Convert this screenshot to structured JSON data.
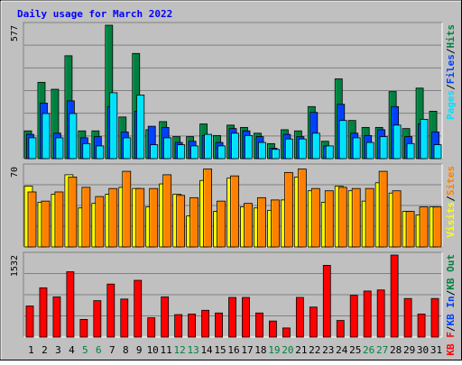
{
  "colors": {
    "background": "#c0c0c0",
    "title": "#0000ff",
    "hits": "#008040",
    "files": "#0040ff",
    "pages": "#00e0ff",
    "visits": "#ffff00",
    "sites": "#ff8000",
    "kbf": "#ff0000",
    "weekday_label": "#000000",
    "weekend_label": "#008040"
  },
  "chart_data": [
    {
      "type": "bar",
      "title": "Daily usage for March 2022",
      "ymax_label": "577",
      "legend": [
        {
          "text": "Pages",
          "series": "pages"
        },
        {
          "text": "Files",
          "series": "files"
        },
        {
          "text": "Hits",
          "series": "hits"
        }
      ],
      "legend_sep": "/",
      "categories": [
        "1",
        "2",
        "3",
        "4",
        "5",
        "6",
        "7",
        "8",
        "9",
        "10",
        "11",
        "12",
        "13",
        "14",
        "15",
        "16",
        "17",
        "18",
        "19",
        "20",
        "21",
        "22",
        "23",
        "24",
        "25",
        "26",
        "27",
        "28",
        "29",
        "30",
        "31"
      ],
      "weekend": [
        5,
        6,
        12,
        13,
        19,
        20,
        26,
        27
      ],
      "ylim": [
        0,
        577
      ],
      "series": [
        {
          "name": "Hits",
          "key": "hits",
          "values": [
            120,
            330,
            300,
            445,
            120,
            120,
            577,
            180,
            455,
            125,
            160,
            95,
            95,
            150,
            100,
            145,
            135,
            110,
            65,
            125,
            120,
            225,
            75,
            345,
            165,
            135,
            135,
            290,
            130,
            305,
            205
          ]
        },
        {
          "name": "Files",
          "key": "files",
          "values": [
            105,
            240,
            110,
            250,
            90,
            95,
            225,
            115,
            205,
            140,
            135,
            70,
            75,
            100,
            70,
            130,
            120,
            95,
            45,
            105,
            95,
            200,
            55,
            235,
            110,
            100,
            125,
            225,
            95,
            150,
            115
          ]
        },
        {
          "name": "Pages",
          "key": "pages",
          "values": [
            90,
            195,
            90,
            195,
            65,
            55,
            285,
            90,
            275,
            60,
            90,
            60,
            55,
            105,
            55,
            110,
            100,
            70,
            40,
            85,
            85,
            110,
            55,
            165,
            90,
            70,
            95,
            145,
            65,
            170,
            60
          ]
        }
      ]
    },
    {
      "type": "bar",
      "ymax_label": "70",
      "legend": [
        {
          "text": "Visits",
          "series": "visits"
        },
        {
          "text": "Sites",
          "series": "sites"
        }
      ],
      "legend_sep": "/",
      "categories": [
        "1",
        "2",
        "3",
        "4",
        "5",
        "6",
        "7",
        "8",
        "9",
        "10",
        "11",
        "12",
        "13",
        "14",
        "15",
        "16",
        "17",
        "18",
        "19",
        "20",
        "21",
        "22",
        "23",
        "24",
        "25",
        "26",
        "27",
        "28",
        "29",
        "30",
        "31"
      ],
      "ylim": [
        0,
        70
      ],
      "series": [
        {
          "name": "Visits",
          "key": "visits",
          "values": [
            53,
            39,
            46,
            63,
            34,
            38,
            46,
            52,
            51,
            35,
            55,
            46,
            27,
            58,
            31,
            60,
            35,
            34,
            32,
            41,
            61,
            49,
            39,
            53,
            49,
            40,
            56,
            47,
            31,
            28,
            35
          ]
        },
        {
          "name": "Sites",
          "key": "sites",
          "values": [
            48,
            40,
            48,
            61,
            52,
            44,
            51,
            66,
            51,
            51,
            63,
            45,
            43,
            68,
            40,
            62,
            38,
            43,
            41,
            65,
            68,
            51,
            49,
            52,
            51,
            51,
            66,
            49,
            31,
            35,
            35
          ]
        }
      ]
    },
    {
      "type": "bar",
      "ymax_label": "1532",
      "legend": [
        {
          "text": "KB F",
          "series": "kbf"
        },
        {
          "text": "KB In",
          "series": "kbin"
        },
        {
          "text": "KB Out",
          "series": "kbout"
        }
      ],
      "legend_sep": "/",
      "categories": [
        "1",
        "2",
        "3",
        "4",
        "5",
        "6",
        "7",
        "8",
        "9",
        "10",
        "11",
        "12",
        "13",
        "14",
        "15",
        "16",
        "17",
        "18",
        "19",
        "20",
        "21",
        "22",
        "23",
        "24",
        "25",
        "26",
        "27",
        "28",
        "29",
        "30",
        "31"
      ],
      "ylim": [
        0,
        1532
      ],
      "series": [
        {
          "name": "KB F",
          "key": "kbf",
          "values": [
            580,
            920,
            750,
            1220,
            330,
            680,
            990,
            710,
            1060,
            360,
            750,
            420,
            430,
            500,
            450,
            740,
            740,
            450,
            300,
            170,
            740,
            560,
            1340,
            310,
            780,
            860,
            880,
            1532,
            720,
            430,
            720
          ]
        }
      ]
    }
  ]
}
